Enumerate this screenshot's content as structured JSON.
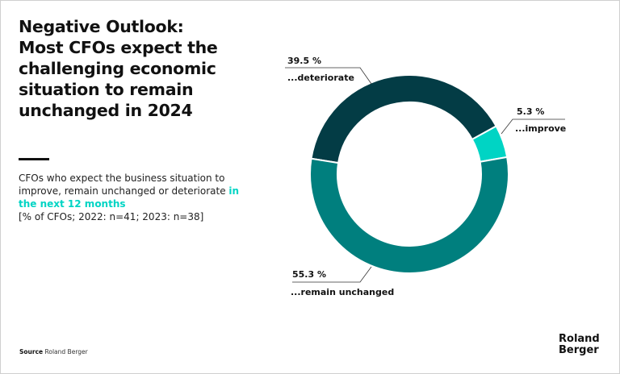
{
  "title": "Negative Outlook: Most CFOs expect the challenging economic situation to remain unchanged in 2024",
  "subtitle": {
    "text": "CFOs who expect the business situation to improve, remain unchanged or deteriorate ",
    "highlight": "in the next 12 months",
    "note": "[% of CFOs; 2022: n=41; 2023: n=38]"
  },
  "source": {
    "label": "Source",
    "value": "Roland Berger"
  },
  "logo": {
    "line1": "Roland",
    "line2": "Berger"
  },
  "chart_data": {
    "type": "pie",
    "donut": true,
    "start_angle_deg": 279,
    "slices": [
      {
        "label": "...deteriorate",
        "value": 39.5,
        "display": "39.5 %",
        "color": "#033c45"
      },
      {
        "label": "...improve",
        "value": 5.3,
        "display": "5.3 %",
        "color": "#00d4c4"
      },
      {
        "label": "...remain unchanged",
        "value": 55.3,
        "display": "55.3 %",
        "color": "#007f7e"
      }
    ]
  }
}
